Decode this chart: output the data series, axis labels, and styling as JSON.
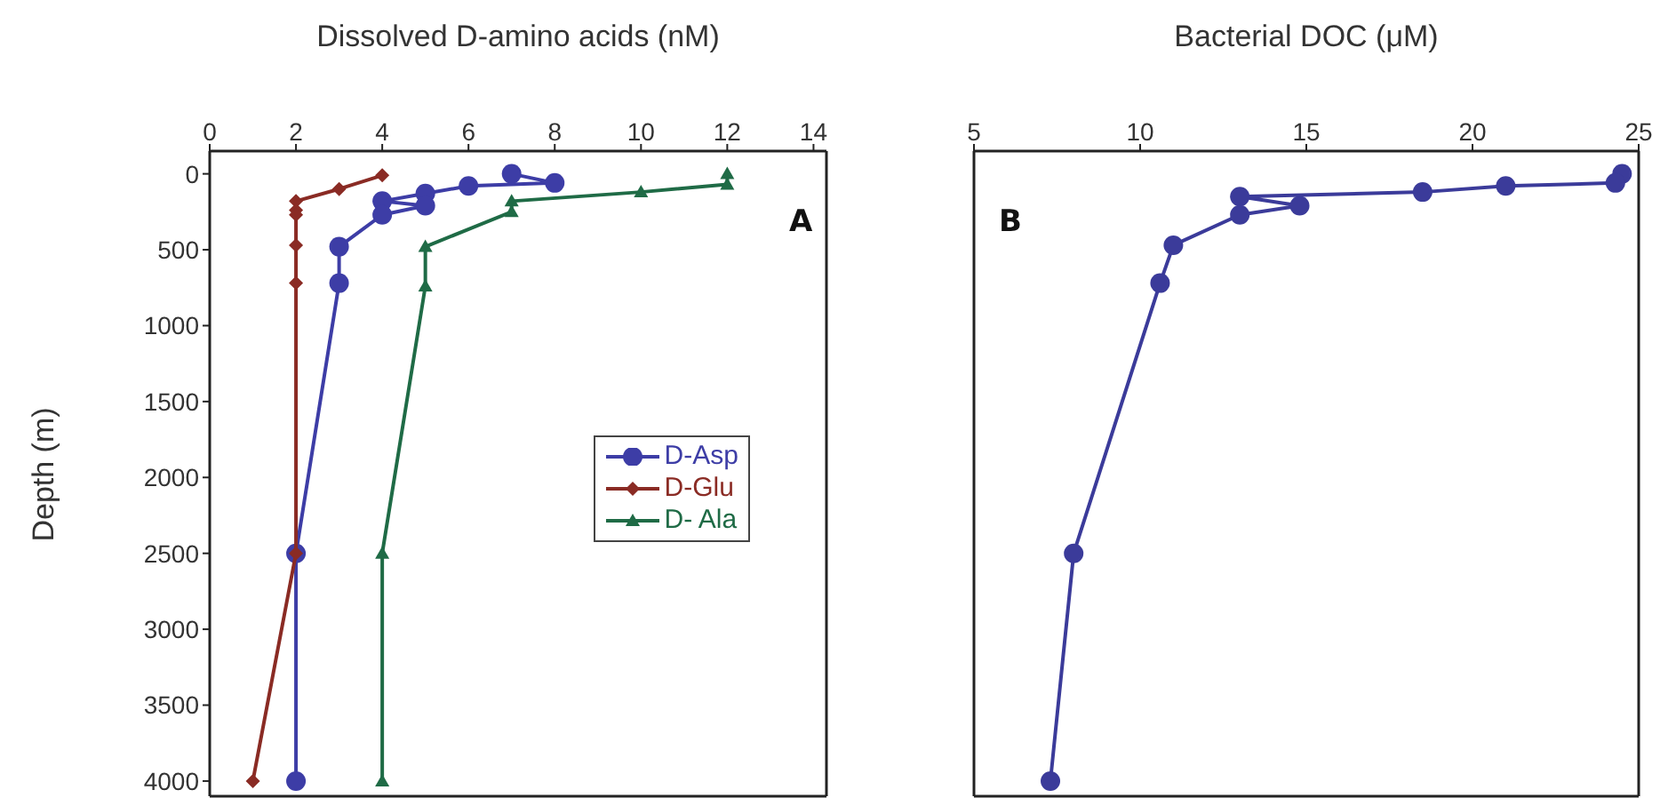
{
  "chart_data": [
    {
      "type": "line",
      "xlabel": "Dissolved D-amino acids (nM)",
      "ylabel": "Depth (m)",
      "xlim": [
        0,
        14.3
      ],
      "xticks": [
        0,
        2,
        4,
        6,
        8,
        10,
        12,
        14
      ],
      "ylim": [
        4100,
        -150
      ],
      "yticks": [
        0,
        500,
        1000,
        1500,
        2000,
        2500,
        3000,
        3500,
        4000
      ],
      "grid": false,
      "legend": "right",
      "annotations": [
        "A"
      ],
      "series": [
        {
          "name": "D-Asp",
          "color": "#3d3da6",
          "marker": "circle",
          "x": [
            7,
            8,
            6,
            5,
            4,
            5,
            4,
            3,
            3,
            2,
            2
          ],
          "values": [
            0,
            60,
            80,
            130,
            180,
            210,
            270,
            480,
            720,
            2500,
            4000
          ]
        },
        {
          "name": "D-Glu",
          "color": "#8a2b24",
          "marker": "diamond",
          "x": [
            4,
            3,
            2,
            2,
            2,
            2,
            2,
            2,
            1
          ],
          "values": [
            10,
            100,
            180,
            240,
            270,
            470,
            720,
            2500,
            4000
          ]
        },
        {
          "name": "D- Ala",
          "color": "#1f6b46",
          "marker": "triangle",
          "x": [
            12,
            12,
            10,
            7,
            7,
            5,
            5,
            4,
            4
          ],
          "values": [
            0,
            70,
            120,
            180,
            250,
            480,
            740,
            2500,
            4000
          ]
        }
      ]
    },
    {
      "type": "line",
      "xlabel": "Bacterial DOC (μM)",
      "xlim": [
        5,
        25
      ],
      "xticks": [
        5,
        10,
        15,
        20,
        25
      ],
      "ylim": [
        4100,
        -150
      ],
      "yticks": [
        0,
        500,
        1000,
        1500,
        2000,
        2500,
        3000,
        3500,
        4000
      ],
      "tick_labels": "x",
      "grid": false,
      "annotations": [
        "B"
      ],
      "series": [
        {
          "color": "#3b3b9a",
          "marker": "circle",
          "x": [
            24.5,
            24.3,
            21,
            18.5,
            13,
            14.8,
            13,
            11,
            10.6,
            8,
            7.3
          ],
          "values": [
            0,
            60,
            80,
            120,
            150,
            210,
            270,
            470,
            720,
            2500,
            4000
          ]
        }
      ]
    }
  ]
}
